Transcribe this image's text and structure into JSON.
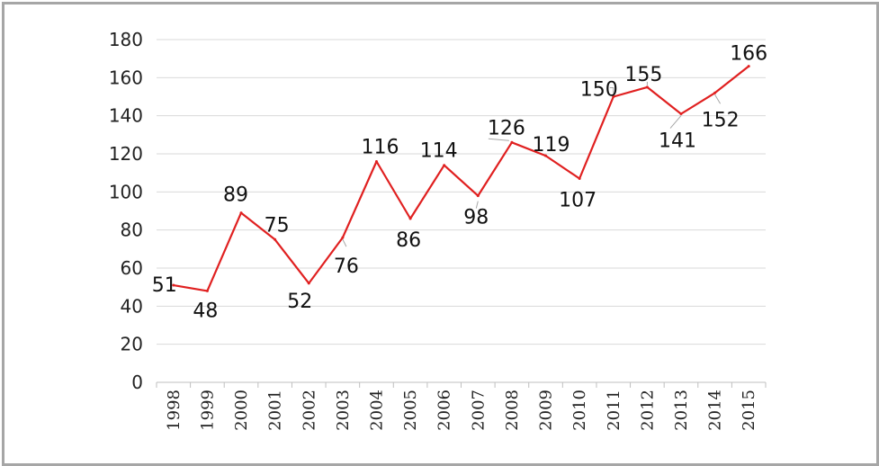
{
  "chart_data": {
    "type": "line",
    "categories": [
      "1998",
      "1999",
      "2000",
      "2001",
      "2002",
      "2003",
      "2004",
      "2005",
      "2006",
      "2007",
      "2008",
      "2009",
      "2010",
      "2011",
      "2012",
      "2013",
      "2014",
      "2015"
    ],
    "series": [
      {
        "values": [
          51,
          48,
          89,
          75,
          52,
          76,
          116,
          86,
          114,
          98,
          126,
          119,
          107,
          150,
          155,
          141,
          152,
          166
        ]
      }
    ],
    "ylim": [
      0,
      180
    ],
    "yticks": [
      "0",
      "20",
      "40",
      "60",
      "80",
      "100",
      "120",
      "140",
      "160",
      "180"
    ],
    "grid": true,
    "line_color": "#e02020",
    "title": "",
    "xlabel": "",
    "ylabel": ""
  }
}
